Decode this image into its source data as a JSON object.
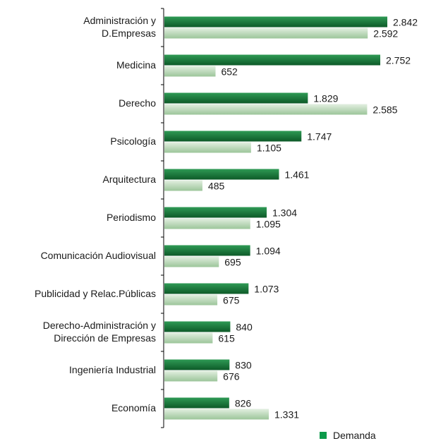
{
  "chart_data": {
    "type": "bar",
    "orientation": "horizontal",
    "categories": [
      [
        "Administración y",
        "D.Empresas"
      ],
      [
        "Medicina"
      ],
      [
        "Derecho"
      ],
      [
        "Psicología"
      ],
      [
        "Arquitectura"
      ],
      [
        "Periodismo"
      ],
      [
        "Comunicación Audiovisual"
      ],
      [
        "Publicidad y Relac.Públicas"
      ],
      [
        "Derecho-Administración y",
        "Dirección de Empresas"
      ],
      [
        "Ingeniería Industrial"
      ],
      [
        "Economía"
      ]
    ],
    "series": [
      {
        "name": "Demanda",
        "color": "#1e7a3c",
        "values": [
          2842,
          2752,
          1829,
          1747,
          1461,
          1304,
          1094,
          1073,
          840,
          830,
          826
        ],
        "labels": [
          "2.842",
          "2.752",
          "1.829",
          "1.747",
          "1.461",
          "1.304",
          "1.094",
          "1.073",
          "840",
          "830",
          "826"
        ]
      },
      {
        "name": "",
        "color": "#b9d6b8",
        "values": [
          2592,
          652,
          2585,
          1105,
          485,
          1095,
          695,
          675,
          615,
          676,
          1331
        ],
        "labels": [
          "2.592",
          "652",
          "2.585",
          "1.105",
          "485",
          "1.095",
          "695",
          "675",
          "615",
          "676",
          "1.331"
        ]
      }
    ],
    "legend": {
      "position": "bottom-right",
      "entries": [
        "Demanda"
      ]
    },
    "xlim": [
      0,
      3100
    ],
    "grid": false
  }
}
